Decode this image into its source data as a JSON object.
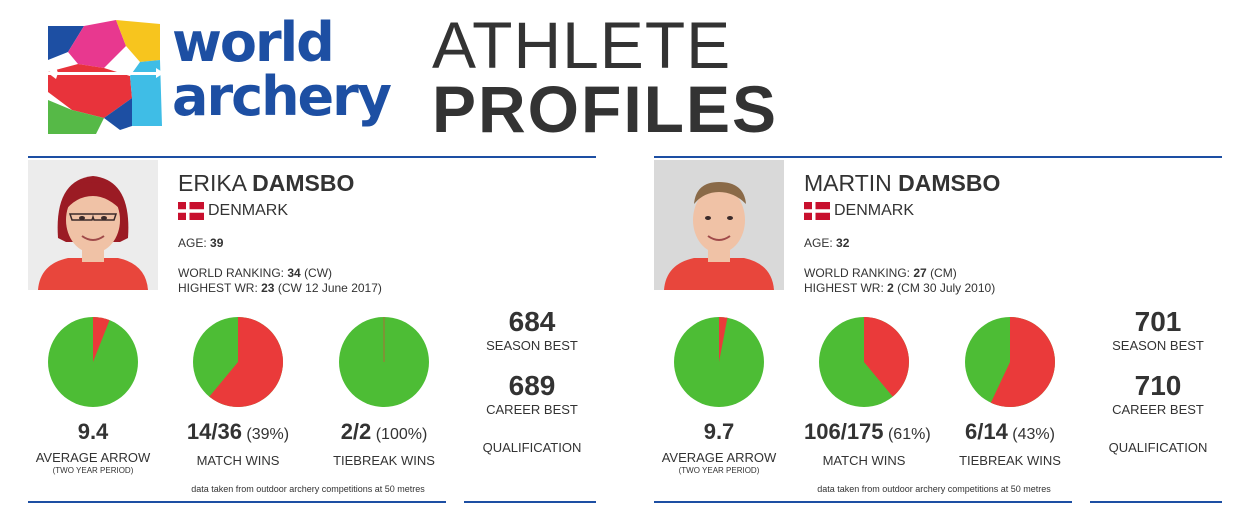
{
  "brand": {
    "logo_text_line1": "world",
    "logo_text_line2": "archery",
    "colors": {
      "blue": "#1d4fa3",
      "magenta": "#e8388f",
      "yellow": "#f7c51e",
      "red": "#e8333b",
      "green": "#56b947",
      "cyan": "#3fbde6"
    }
  },
  "headline": {
    "line1": "ATHLETE",
    "line2": "PROFILES"
  },
  "colors": {
    "pie_green": "#4dbd35",
    "pie_red": "#ea3a3a",
    "rule_blue": "#1d4fa3",
    "flag_red": "#c8102e"
  },
  "athletes": [
    {
      "first_name": "ERIKA",
      "last_name": "DAMSBO",
      "country": "DENMARK",
      "flag_icon": "denmark-flag-icon",
      "age_label": "AGE:",
      "age": "39",
      "world_ranking_label": "WORLD RANKING:",
      "world_ranking": "34",
      "world_ranking_cat": "(CW)",
      "highest_wr_label": "HIGHEST WR:",
      "highest_wr": "23",
      "highest_wr_detail": "(CW 12 June 2017)",
      "stats": [
        {
          "value": "9.4",
          "pct": "",
          "label": "AVERAGE ARROW",
          "sub": "(TWO YEAR PERIOD)",
          "red_fraction": 0.06
        },
        {
          "value": "14/36",
          "pct": "(39%)",
          "label": "MATCH WINS",
          "sub": "",
          "red_fraction": 0.61
        },
        {
          "value": "2/2",
          "pct": "(100%)",
          "label": "TIEBREAK WINS",
          "sub": "",
          "red_fraction": 0.0
        }
      ],
      "season_best": "684",
      "season_best_label": "SEASON BEST",
      "career_best": "689",
      "career_best_label": "CAREER BEST",
      "qualification_label": "QUALIFICATION",
      "footnote": "data taken from outdoor archery competitions at 50 metres"
    },
    {
      "first_name": "MARTIN",
      "last_name": "DAMSBO",
      "country": "DENMARK",
      "flag_icon": "denmark-flag-icon",
      "age_label": "AGE:",
      "age": "32",
      "world_ranking_label": "WORLD RANKING:",
      "world_ranking": "27",
      "world_ranking_cat": "(CM)",
      "highest_wr_label": "HIGHEST WR:",
      "highest_wr": "2",
      "highest_wr_detail": "(CM 30 July 2010)",
      "stats": [
        {
          "value": "9.7",
          "pct": "",
          "label": "AVERAGE ARROW",
          "sub": "(TWO YEAR PERIOD)",
          "red_fraction": 0.03
        },
        {
          "value": "106/175",
          "pct": "(61%)",
          "label": "MATCH WINS",
          "sub": "",
          "red_fraction": 0.39
        },
        {
          "value": "6/14",
          "pct": "(43%)",
          "label": "TIEBREAK WINS",
          "sub": "",
          "red_fraction": 0.57
        }
      ],
      "season_best": "701",
      "season_best_label": "SEASON BEST",
      "career_best": "710",
      "career_best_label": "CAREER BEST",
      "qualification_label": "QUALIFICATION",
      "footnote": "data taken from outdoor archery competitions at 50 metres"
    }
  ]
}
